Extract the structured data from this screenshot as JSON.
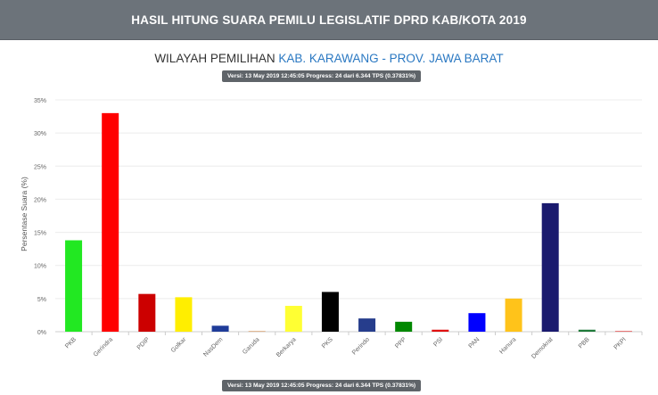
{
  "header": {
    "title": "HASIL HITUNG SUARA PEMILU LEGISLATIF DPRD KAB/KOTA 2019"
  },
  "region": {
    "label": "WILAYAH PEMILIHAN",
    "value": "KAB. KARAWANG - PROV. JAWA BARAT"
  },
  "version_badge": {
    "text": "Versi: 13 May 2019 12:45:05 Progress: 24 dari 6.344 TPS (0.37831%)"
  },
  "colors": {
    "header_bg": "#6c737a",
    "region_value": "#2a78c2",
    "badge_bg": "#5f6469"
  },
  "chart_data": {
    "type": "bar",
    "title": "",
    "xlabel": "",
    "ylabel": "Persentase Suara (%)",
    "ylim": [
      0,
      35
    ],
    "yticks": [
      0,
      5,
      10,
      15,
      20,
      25,
      30,
      35
    ],
    "ytick_labels": [
      "0%",
      "5%",
      "10%",
      "15%",
      "20%",
      "25%",
      "30%",
      "35%"
    ],
    "grid": true,
    "categories": [
      "PKB",
      "Gerindra",
      "PDIP",
      "Golkar",
      "NasDem",
      "Garuda",
      "Berkarya",
      "PKS",
      "Perindo",
      "PPP",
      "PSI",
      "PAN",
      "Hanura",
      "Demokrat",
      "PBB",
      "PKPI"
    ],
    "values": [
      13.8,
      33.0,
      5.7,
      5.2,
      0.9,
      0.1,
      3.9,
      6.0,
      2.0,
      1.5,
      0.3,
      2.8,
      5.0,
      19.4,
      0.3,
      0.1
    ],
    "colors": [
      "#22e822",
      "#ff0000",
      "#cc0000",
      "#ffee00",
      "#1f3c99",
      "#d9a070",
      "#ffff33",
      "#000000",
      "#263d8c",
      "#008800",
      "#e01010",
      "#0000ff",
      "#ffc31a",
      "#1a1a6e",
      "#1f7a3a",
      "#e04848"
    ]
  }
}
